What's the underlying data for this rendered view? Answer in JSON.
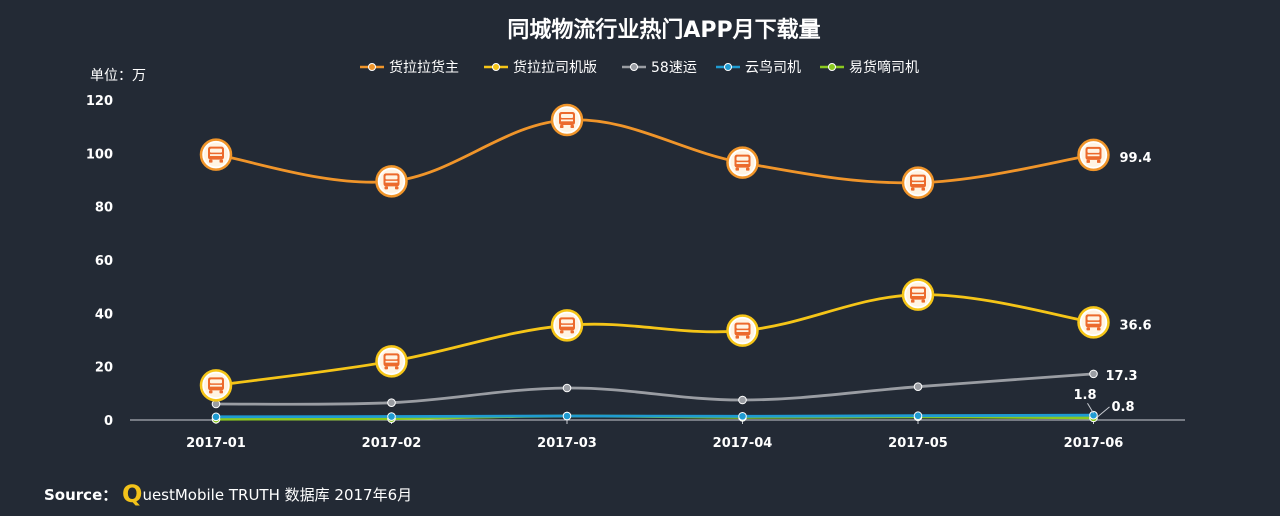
{
  "chart_data": {
    "type": "line",
    "title": "同城物流行业热门APP月下载量",
    "unit_label": "单位：万",
    "categories": [
      "2017-01",
      "2017-02",
      "2017-03",
      "2017-04",
      "2017-05",
      "2017-06"
    ],
    "ylim": [
      0,
      120
    ],
    "yticks": [
      0,
      20,
      40,
      60,
      80,
      100,
      120
    ],
    "grid": false,
    "legend_position": "top-center",
    "series": [
      {
        "name": "货拉拉货主",
        "color": "#f0952a",
        "values": [
          99.5,
          89.5,
          112.5,
          96.5,
          89.0,
          99.4
        ],
        "marker": "truck-badge",
        "end_label": "99.4"
      },
      {
        "name": "货拉拉司机版",
        "color": "#f5c518",
        "values": [
          13.0,
          22.0,
          35.5,
          33.5,
          47.0,
          36.6
        ],
        "marker": "truck-badge",
        "end_label": "36.6"
      },
      {
        "name": "58速运",
        "color": "#9a9da3",
        "values": [
          6.0,
          6.5,
          12.0,
          7.5,
          12.5,
          17.3
        ],
        "marker": "dot",
        "end_label": "17.3"
      },
      {
        "name": "云鸟司机",
        "color": "#1f9bd1",
        "values": [
          1.2,
          1.3,
          1.5,
          1.4,
          1.6,
          1.8
        ],
        "marker": "dot",
        "end_label": "1.8"
      },
      {
        "name": "易货嘀司机",
        "color": "#8bc91f",
        "values": [
          0.3,
          0.5,
          1.5,
          1.0,
          1.2,
          0.8
        ],
        "marker": "dot",
        "end_label": "0.8"
      }
    ]
  },
  "source": {
    "prefix": "Source：",
    "q_letter": "Q",
    "brand_rest": "uestMobile",
    "suffix": "TRUTH 数据库 2017年6月"
  }
}
